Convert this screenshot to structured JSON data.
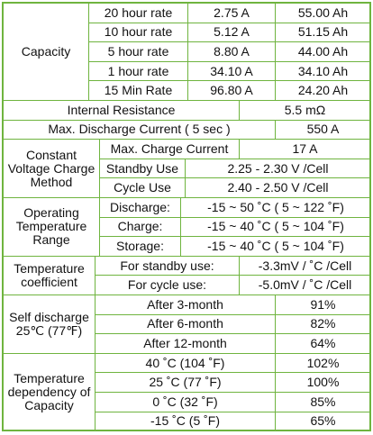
{
  "capacity": {
    "label": "Capacity",
    "rows": [
      [
        "20 hour rate",
        "2.75 A",
        "55.00 Ah"
      ],
      [
        "10 hour rate",
        "5.12 A",
        "51.15 Ah"
      ],
      [
        "5 hour rate",
        "8.80 A",
        "44.00 Ah"
      ],
      [
        "1 hour rate",
        "34.10 A",
        "34.10 Ah"
      ],
      [
        "15 Min Rate",
        "96.80 A",
        "24.20 Ah"
      ]
    ]
  },
  "internal_resistance": {
    "label": "Internal Resistance",
    "value": "5.5 mΩ"
  },
  "max_discharge": {
    "label": "Max. Discharge Current ( 5 sec )",
    "value": "550 A"
  },
  "charge_method": {
    "label": "Constant Voltage Charge Method",
    "rows": [
      [
        "Max. Charge Current",
        "17 A"
      ],
      [
        "Standby Use",
        "2.25 - 2.30 V /Cell"
      ],
      [
        "Cycle Use",
        "2.40 - 2.50 V /Cell"
      ]
    ]
  },
  "operating_temperature": {
    "label": "Operating Temperature Range",
    "rows": [
      [
        "Discharge:",
        "-15 ~ 50 ˚C ( 5 ~ 122 ˚F)"
      ],
      [
        "Charge:",
        "-15 ~ 40 ˚C ( 5 ~ 104 ˚F)"
      ],
      [
        "Storage:",
        "-15 ~ 40 ˚C ( 5 ~ 104 ˚F)"
      ]
    ]
  },
  "temperature_coefficient": {
    "label": "Temperature coefficient",
    "rows": [
      [
        "For standby use:",
        "-3.3mV / ˚C /Cell"
      ],
      [
        "For cycle use:",
        "-5.0mV / ˚C /Cell"
      ]
    ]
  },
  "self_discharge": {
    "label": "Self discharge 25℃ (77℉)",
    "rows": [
      [
        "After 3-month",
        "91%"
      ],
      [
        "After 6-month",
        "82%"
      ],
      [
        "After 12-month",
        "64%"
      ]
    ]
  },
  "temperature_dependency": {
    "label": "Temperature dependency of Capacity",
    "rows": [
      [
        "40 ˚C (104 ˚F)",
        "102%"
      ],
      [
        "25 ˚C (77 ˚F)",
        "100%"
      ],
      [
        "0 ˚C (32 ˚F)",
        "85%"
      ],
      [
        "-15 ˚C (5 ˚F)",
        "65%"
      ]
    ]
  }
}
